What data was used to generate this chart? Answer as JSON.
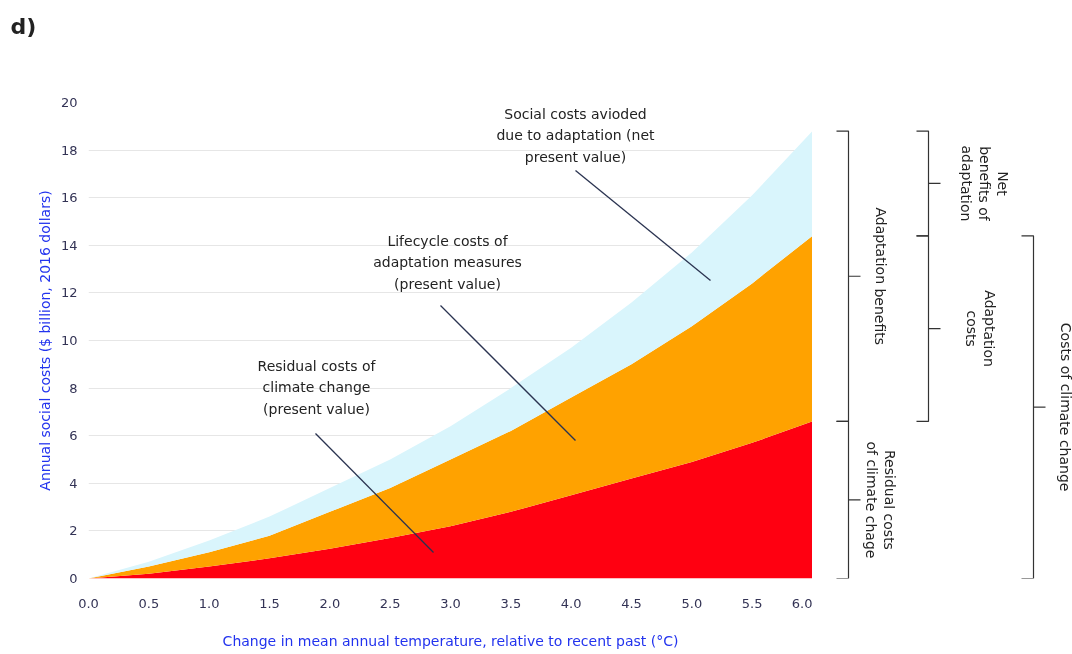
{
  "chart_data": {
    "type": "area",
    "stacked": true,
    "title": "d)",
    "xlabel": "Change in mean annual temperature, relative to recent past (°C)",
    "ylabel": "Annual social costs ($ billion, 2016 dollars)",
    "x": [
      0,
      0.5,
      1,
      1.5,
      2,
      2.5,
      3,
      3.5,
      4,
      4.5,
      5,
      5.5,
      6
    ],
    "series": [
      {
        "color": "#ff0011",
        "values": [
          0,
          0.2,
          0.5,
          0.85,
          1.25,
          1.7,
          2.2,
          2.8,
          3.5,
          4.2,
          4.9,
          5.7,
          6.6
        ]
      },
      {
        "color": "#ffa200",
        "values": [
          0,
          0.3,
          0.6,
          0.95,
          1.55,
          2.1,
          2.8,
          3.4,
          4.1,
          4.8,
          5.7,
          6.7,
          7.8
        ]
      },
      {
        "color": "#d9f5fc",
        "values": [
          0,
          0.2,
          0.5,
          0.8,
          1.0,
          1.2,
          1.4,
          1.8,
          2.1,
          2.6,
          3.1,
          3.7,
          4.4
        ]
      }
    ],
    "xlim": [
      0,
      6
    ],
    "xticks": [
      {
        "value": 0,
        "label": "0.0"
      },
      {
        "value": 0.5,
        "label": "0.5"
      },
      {
        "value": 1,
        "label": "1.0"
      },
      {
        "value": 1.5,
        "label": "1.5"
      },
      {
        "value": 2,
        "label": "2.0"
      },
      {
        "value": 2.5,
        "label": "2.5"
      },
      {
        "value": 3,
        "label": "3.0"
      },
      {
        "value": 3.5,
        "label": "3.5"
      },
      {
        "value": 4,
        "label": "4.0"
      },
      {
        "value": 4.5,
        "label": "4.5"
      },
      {
        "value": 5,
        "label": "5.0"
      },
      {
        "value": 5.5,
        "label": "5.5"
      },
      {
        "value": 6,
        "label": "6.0"
      }
    ],
    "ylim": [
      0,
      20
    ],
    "yticks": [
      0,
      2,
      4,
      6,
      8,
      10,
      12,
      14,
      16,
      18,
      20
    ],
    "grid": "y",
    "annotations": [
      "Residual costs of\nclimate change\n(present value)",
      "Lifecycle costs of\nadaptation measures\n(present value)",
      "Social costs avioded\ndue to adaptation (net\npresent value)",
      "Adaptation benefits",
      "Net\nbenefits of\nadaptation",
      "Adaptation\ncosts",
      "Residual costs\nof climate chage",
      "Costs of climate change"
    ]
  }
}
